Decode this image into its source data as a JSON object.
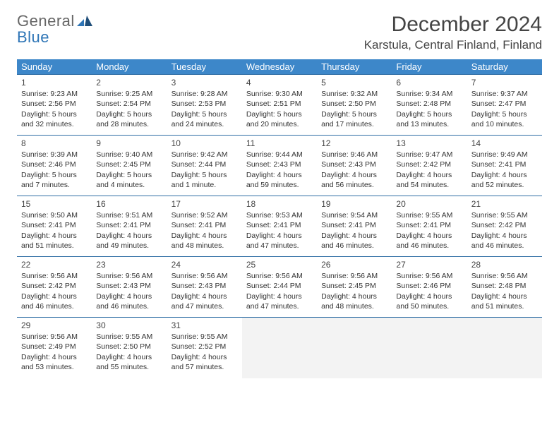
{
  "logo": {
    "line1": "General",
    "line2": "Blue"
  },
  "title": "December 2024",
  "location": "Karstula, Central Finland, Finland",
  "colors": {
    "header_bg": "#3d87c9",
    "row_border": "#2e6da4",
    "logo_blue": "#2e75b6",
    "text": "#333333",
    "empty_bg": "#f3f3f3"
  },
  "day_headers": [
    "Sunday",
    "Monday",
    "Tuesday",
    "Wednesday",
    "Thursday",
    "Friday",
    "Saturday"
  ],
  "weeks": [
    [
      {
        "n": "1",
        "sr": "Sunrise: 9:23 AM",
        "ss": "Sunset: 2:56 PM",
        "d1": "Daylight: 5 hours",
        "d2": "and 32 minutes."
      },
      {
        "n": "2",
        "sr": "Sunrise: 9:25 AM",
        "ss": "Sunset: 2:54 PM",
        "d1": "Daylight: 5 hours",
        "d2": "and 28 minutes."
      },
      {
        "n": "3",
        "sr": "Sunrise: 9:28 AM",
        "ss": "Sunset: 2:53 PM",
        "d1": "Daylight: 5 hours",
        "d2": "and 24 minutes."
      },
      {
        "n": "4",
        "sr": "Sunrise: 9:30 AM",
        "ss": "Sunset: 2:51 PM",
        "d1": "Daylight: 5 hours",
        "d2": "and 20 minutes."
      },
      {
        "n": "5",
        "sr": "Sunrise: 9:32 AM",
        "ss": "Sunset: 2:50 PM",
        "d1": "Daylight: 5 hours",
        "d2": "and 17 minutes."
      },
      {
        "n": "6",
        "sr": "Sunrise: 9:34 AM",
        "ss": "Sunset: 2:48 PM",
        "d1": "Daylight: 5 hours",
        "d2": "and 13 minutes."
      },
      {
        "n": "7",
        "sr": "Sunrise: 9:37 AM",
        "ss": "Sunset: 2:47 PM",
        "d1": "Daylight: 5 hours",
        "d2": "and 10 minutes."
      }
    ],
    [
      {
        "n": "8",
        "sr": "Sunrise: 9:39 AM",
        "ss": "Sunset: 2:46 PM",
        "d1": "Daylight: 5 hours",
        "d2": "and 7 minutes."
      },
      {
        "n": "9",
        "sr": "Sunrise: 9:40 AM",
        "ss": "Sunset: 2:45 PM",
        "d1": "Daylight: 5 hours",
        "d2": "and 4 minutes."
      },
      {
        "n": "10",
        "sr": "Sunrise: 9:42 AM",
        "ss": "Sunset: 2:44 PM",
        "d1": "Daylight: 5 hours",
        "d2": "and 1 minute."
      },
      {
        "n": "11",
        "sr": "Sunrise: 9:44 AM",
        "ss": "Sunset: 2:43 PM",
        "d1": "Daylight: 4 hours",
        "d2": "and 59 minutes."
      },
      {
        "n": "12",
        "sr": "Sunrise: 9:46 AM",
        "ss": "Sunset: 2:43 PM",
        "d1": "Daylight: 4 hours",
        "d2": "and 56 minutes."
      },
      {
        "n": "13",
        "sr": "Sunrise: 9:47 AM",
        "ss": "Sunset: 2:42 PM",
        "d1": "Daylight: 4 hours",
        "d2": "and 54 minutes."
      },
      {
        "n": "14",
        "sr": "Sunrise: 9:49 AM",
        "ss": "Sunset: 2:41 PM",
        "d1": "Daylight: 4 hours",
        "d2": "and 52 minutes."
      }
    ],
    [
      {
        "n": "15",
        "sr": "Sunrise: 9:50 AM",
        "ss": "Sunset: 2:41 PM",
        "d1": "Daylight: 4 hours",
        "d2": "and 51 minutes."
      },
      {
        "n": "16",
        "sr": "Sunrise: 9:51 AM",
        "ss": "Sunset: 2:41 PM",
        "d1": "Daylight: 4 hours",
        "d2": "and 49 minutes."
      },
      {
        "n": "17",
        "sr": "Sunrise: 9:52 AM",
        "ss": "Sunset: 2:41 PM",
        "d1": "Daylight: 4 hours",
        "d2": "and 48 minutes."
      },
      {
        "n": "18",
        "sr": "Sunrise: 9:53 AM",
        "ss": "Sunset: 2:41 PM",
        "d1": "Daylight: 4 hours",
        "d2": "and 47 minutes."
      },
      {
        "n": "19",
        "sr": "Sunrise: 9:54 AM",
        "ss": "Sunset: 2:41 PM",
        "d1": "Daylight: 4 hours",
        "d2": "and 46 minutes."
      },
      {
        "n": "20",
        "sr": "Sunrise: 9:55 AM",
        "ss": "Sunset: 2:41 PM",
        "d1": "Daylight: 4 hours",
        "d2": "and 46 minutes."
      },
      {
        "n": "21",
        "sr": "Sunrise: 9:55 AM",
        "ss": "Sunset: 2:42 PM",
        "d1": "Daylight: 4 hours",
        "d2": "and 46 minutes."
      }
    ],
    [
      {
        "n": "22",
        "sr": "Sunrise: 9:56 AM",
        "ss": "Sunset: 2:42 PM",
        "d1": "Daylight: 4 hours",
        "d2": "and 46 minutes."
      },
      {
        "n": "23",
        "sr": "Sunrise: 9:56 AM",
        "ss": "Sunset: 2:43 PM",
        "d1": "Daylight: 4 hours",
        "d2": "and 46 minutes."
      },
      {
        "n": "24",
        "sr": "Sunrise: 9:56 AM",
        "ss": "Sunset: 2:43 PM",
        "d1": "Daylight: 4 hours",
        "d2": "and 47 minutes."
      },
      {
        "n": "25",
        "sr": "Sunrise: 9:56 AM",
        "ss": "Sunset: 2:44 PM",
        "d1": "Daylight: 4 hours",
        "d2": "and 47 minutes."
      },
      {
        "n": "26",
        "sr": "Sunrise: 9:56 AM",
        "ss": "Sunset: 2:45 PM",
        "d1": "Daylight: 4 hours",
        "d2": "and 48 minutes."
      },
      {
        "n": "27",
        "sr": "Sunrise: 9:56 AM",
        "ss": "Sunset: 2:46 PM",
        "d1": "Daylight: 4 hours",
        "d2": "and 50 minutes."
      },
      {
        "n": "28",
        "sr": "Sunrise: 9:56 AM",
        "ss": "Sunset: 2:48 PM",
        "d1": "Daylight: 4 hours",
        "d2": "and 51 minutes."
      }
    ],
    [
      {
        "n": "29",
        "sr": "Sunrise: 9:56 AM",
        "ss": "Sunset: 2:49 PM",
        "d1": "Daylight: 4 hours",
        "d2": "and 53 minutes."
      },
      {
        "n": "30",
        "sr": "Sunrise: 9:55 AM",
        "ss": "Sunset: 2:50 PM",
        "d1": "Daylight: 4 hours",
        "d2": "and 55 minutes."
      },
      {
        "n": "31",
        "sr": "Sunrise: 9:55 AM",
        "ss": "Sunset: 2:52 PM",
        "d1": "Daylight: 4 hours",
        "d2": "and 57 minutes."
      },
      null,
      null,
      null,
      null
    ]
  ]
}
